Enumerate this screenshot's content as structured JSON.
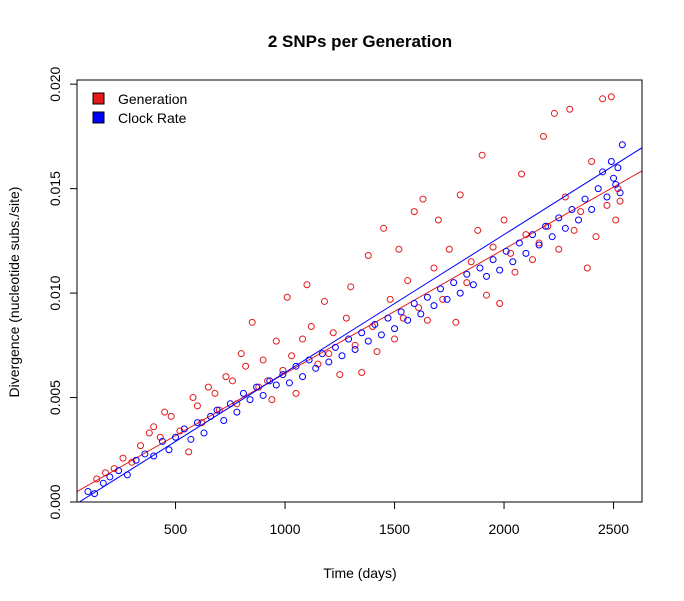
{
  "chart_data": {
    "type": "scatter",
    "title": "2 SNPs per Generation",
    "xlabel": "Time (days)",
    "ylabel": "Divergence (nucleotide subs./site)",
    "xlim": [
      50,
      2630
    ],
    "ylim": [
      0.0,
      0.0202
    ],
    "xticks": [
      "500",
      "1000",
      "1500",
      "2000",
      "2500"
    ],
    "yticks": [
      "0.000",
      "0.005",
      "0.010",
      "0.015",
      "0.020"
    ],
    "legend_position": "top-left",
    "grid": false,
    "series": [
      {
        "name": "Generation",
        "color": "#e41a1c",
        "marker": "open-circle",
        "fit": {
          "slope": 5.95e-06,
          "intercept": 0.0002
        },
        "points": [
          [
            140,
            0.0011
          ],
          [
            180,
            0.0014
          ],
          [
            220,
            0.0016
          ],
          [
            260,
            0.0021
          ],
          [
            300,
            0.0019
          ],
          [
            340,
            0.0027
          ],
          [
            380,
            0.0033
          ],
          [
            400,
            0.0036
          ],
          [
            430,
            0.0031
          ],
          [
            450,
            0.0043
          ],
          [
            480,
            0.0041
          ],
          [
            520,
            0.0034
          ],
          [
            560,
            0.0024
          ],
          [
            580,
            0.005
          ],
          [
            600,
            0.0046
          ],
          [
            620,
            0.0038
          ],
          [
            650,
            0.0055
          ],
          [
            680,
            0.0052
          ],
          [
            700,
            0.0044
          ],
          [
            730,
            0.006
          ],
          [
            760,
            0.0058
          ],
          [
            780,
            0.0047
          ],
          [
            800,
            0.0071
          ],
          [
            820,
            0.0065
          ],
          [
            850,
            0.0086
          ],
          [
            880,
            0.0055
          ],
          [
            900,
            0.0068
          ],
          [
            920,
            0.0058
          ],
          [
            940,
            0.0049
          ],
          [
            960,
            0.0077
          ],
          [
            990,
            0.0063
          ],
          [
            1010,
            0.0098
          ],
          [
            1030,
            0.007
          ],
          [
            1050,
            0.0052
          ],
          [
            1080,
            0.0078
          ],
          [
            1100,
            0.0104
          ],
          [
            1120,
            0.0084
          ],
          [
            1150,
            0.0066
          ],
          [
            1180,
            0.0096
          ],
          [
            1200,
            0.0071
          ],
          [
            1220,
            0.0081
          ],
          [
            1250,
            0.0061
          ],
          [
            1280,
            0.0088
          ],
          [
            1300,
            0.0103
          ],
          [
            1320,
            0.0075
          ],
          [
            1350,
            0.0062
          ],
          [
            1380,
            0.0118
          ],
          [
            1400,
            0.0084
          ],
          [
            1420,
            0.0072
          ],
          [
            1450,
            0.0131
          ],
          [
            1480,
            0.0097
          ],
          [
            1500,
            0.0078
          ],
          [
            1520,
            0.0121
          ],
          [
            1540,
            0.0088
          ],
          [
            1560,
            0.0106
          ],
          [
            1590,
            0.0139
          ],
          [
            1610,
            0.0093
          ],
          [
            1630,
            0.0145
          ],
          [
            1650,
            0.0087
          ],
          [
            1680,
            0.0112
          ],
          [
            1700,
            0.0135
          ],
          [
            1720,
            0.0097
          ],
          [
            1750,
            0.0121
          ],
          [
            1780,
            0.0086
          ],
          [
            1800,
            0.0147
          ],
          [
            1830,
            0.0105
          ],
          [
            1850,
            0.0115
          ],
          [
            1880,
            0.013
          ],
          [
            1900,
            0.0166
          ],
          [
            1920,
            0.0099
          ],
          [
            1950,
            0.0122
          ],
          [
            1980,
            0.0095
          ],
          [
            2000,
            0.0135
          ],
          [
            2030,
            0.0119
          ],
          [
            2050,
            0.011
          ],
          [
            2080,
            0.0157
          ],
          [
            2100,
            0.0128
          ],
          [
            2130,
            0.0116
          ],
          [
            2160,
            0.0124
          ],
          [
            2180,
            0.0175
          ],
          [
            2200,
            0.0132
          ],
          [
            2230,
            0.0186
          ],
          [
            2250,
            0.0121
          ],
          [
            2280,
            0.0146
          ],
          [
            2300,
            0.0188
          ],
          [
            2320,
            0.013
          ],
          [
            2350,
            0.0139
          ],
          [
            2380,
            0.0112
          ],
          [
            2400,
            0.0163
          ],
          [
            2420,
            0.0127
          ],
          [
            2450,
            0.0193
          ],
          [
            2470,
            0.0142
          ],
          [
            2490,
            0.0194
          ],
          [
            2510,
            0.0135
          ],
          [
            2520,
            0.015
          ],
          [
            2530,
            0.0144
          ]
        ]
      },
      {
        "name": "Clock Rate",
        "color": "#0000ff",
        "marker": "open-circle",
        "fit": {
          "slope": 6.6e-06,
          "intercept": -0.0004
        },
        "points": [
          [
            100,
            0.0005
          ],
          [
            130,
            0.0004
          ],
          [
            170,
            0.0009
          ],
          [
            200,
            0.0012
          ],
          [
            240,
            0.0015
          ],
          [
            280,
            0.0013
          ],
          [
            320,
            0.002
          ],
          [
            360,
            0.0023
          ],
          [
            400,
            0.0022
          ],
          [
            440,
            0.0029
          ],
          [
            470,
            0.0025
          ],
          [
            500,
            0.0031
          ],
          [
            540,
            0.0035
          ],
          [
            570,
            0.003
          ],
          [
            600,
            0.0038
          ],
          [
            630,
            0.0033
          ],
          [
            660,
            0.0041
          ],
          [
            690,
            0.0044
          ],
          [
            720,
            0.0039
          ],
          [
            750,
            0.0047
          ],
          [
            780,
            0.0043
          ],
          [
            810,
            0.0052
          ],
          [
            840,
            0.0049
          ],
          [
            870,
            0.0055
          ],
          [
            900,
            0.0051
          ],
          [
            930,
            0.0058
          ],
          [
            960,
            0.0056
          ],
          [
            990,
            0.0061
          ],
          [
            1020,
            0.0057
          ],
          [
            1050,
            0.0065
          ],
          [
            1080,
            0.006
          ],
          [
            1110,
            0.0068
          ],
          [
            1140,
            0.0064
          ],
          [
            1170,
            0.0071
          ],
          [
            1200,
            0.0067
          ],
          [
            1230,
            0.0074
          ],
          [
            1260,
            0.007
          ],
          [
            1290,
            0.0078
          ],
          [
            1320,
            0.0073
          ],
          [
            1350,
            0.0081
          ],
          [
            1380,
            0.0077
          ],
          [
            1410,
            0.0085
          ],
          [
            1440,
            0.008
          ],
          [
            1470,
            0.0088
          ],
          [
            1500,
            0.0083
          ],
          [
            1530,
            0.0091
          ],
          [
            1560,
            0.0087
          ],
          [
            1590,
            0.0095
          ],
          [
            1620,
            0.009
          ],
          [
            1650,
            0.0098
          ],
          [
            1680,
            0.0094
          ],
          [
            1710,
            0.0102
          ],
          [
            1740,
            0.0097
          ],
          [
            1770,
            0.0105
          ],
          [
            1800,
            0.01
          ],
          [
            1830,
            0.0109
          ],
          [
            1860,
            0.0104
          ],
          [
            1890,
            0.0112
          ],
          [
            1920,
            0.0108
          ],
          [
            1950,
            0.0116
          ],
          [
            1980,
            0.0111
          ],
          [
            2010,
            0.012
          ],
          [
            2040,
            0.0115
          ],
          [
            2070,
            0.0124
          ],
          [
            2100,
            0.0119
          ],
          [
            2130,
            0.0128
          ],
          [
            2160,
            0.0123
          ],
          [
            2190,
            0.0132
          ],
          [
            2220,
            0.0127
          ],
          [
            2250,
            0.0136
          ],
          [
            2280,
            0.0131
          ],
          [
            2310,
            0.014
          ],
          [
            2340,
            0.0135
          ],
          [
            2370,
            0.0145
          ],
          [
            2400,
            0.014
          ],
          [
            2430,
            0.015
          ],
          [
            2450,
            0.0158
          ],
          [
            2470,
            0.0146
          ],
          [
            2490,
            0.0163
          ],
          [
            2500,
            0.0155
          ],
          [
            2510,
            0.0152
          ],
          [
            2520,
            0.016
          ],
          [
            2530,
            0.0148
          ],
          [
            2540,
            0.0171
          ]
        ]
      }
    ]
  }
}
